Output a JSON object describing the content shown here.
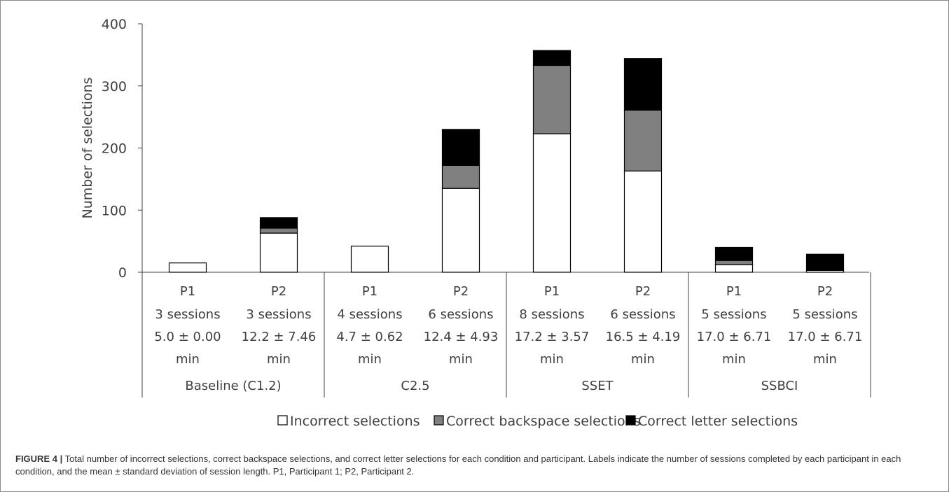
{
  "chart_data": {
    "type": "bar",
    "stacked": true,
    "ylabel": "Number of selections",
    "ylim": [
      0,
      400
    ],
    "yticks": [
      0,
      100,
      200,
      300,
      400
    ],
    "grid": false,
    "legend_placement": "bottom",
    "groups": [
      {
        "label": "Baseline (C1.2)",
        "bars": [
          {
            "participant": "P1",
            "sessions": "3 sessions",
            "length": "5.0 ± 0.00",
            "unit": "min"
          },
          {
            "participant": "P2",
            "sessions": "3 sessions",
            "length": "12.2 ± 7.46",
            "unit": "min"
          }
        ]
      },
      {
        "label": "C2.5",
        "bars": [
          {
            "participant": "P1",
            "sessions": "4 sessions",
            "length": "4.7 ± 0.62",
            "unit": "min"
          },
          {
            "participant": "P2",
            "sessions": "6 sessions",
            "length": "12.4 ± 4.93",
            "unit": "min"
          }
        ]
      },
      {
        "label": "SSET",
        "bars": [
          {
            "participant": "P1",
            "sessions": "8 sessions",
            "length": "17.2 ± 3.57",
            "unit": "min"
          },
          {
            "participant": "P2",
            "sessions": "6 sessions",
            "length": "16.5 ± 4.19",
            "unit": "min"
          }
        ]
      },
      {
        "label": "SSBCI",
        "bars": [
          {
            "participant": "P1",
            "sessions": "5 sessions",
            "length": "17.0 ± 6.71",
            "unit": "min"
          },
          {
            "participant": "P2",
            "sessions": "5 sessions",
            "length": "17.0 ± 6.71",
            "unit": "min"
          }
        ]
      }
    ],
    "series": [
      {
        "name": "Incorrect selections",
        "color": "#ffffff",
        "values": [
          15,
          63,
          42,
          135,
          223,
          163,
          12,
          3
        ]
      },
      {
        "name": "Correct backspace selections",
        "color": "#808080",
        "values": [
          0,
          8,
          0,
          37,
          110,
          98,
          7,
          1
        ]
      },
      {
        "name": "Correct letter selections",
        "color": "#000000",
        "values": [
          0,
          17,
          0,
          58,
          24,
          83,
          21,
          25
        ]
      }
    ]
  },
  "caption": {
    "label": "FIGURE 4 |",
    "text": "Total number of incorrect selections, correct backspace selections, and correct letter selections for each condition and participant. Labels indicate the number of sessions completed by each participant in each condition, and the mean ± standard deviation of session length. P1, Participant 1; P2, Participant 2."
  }
}
